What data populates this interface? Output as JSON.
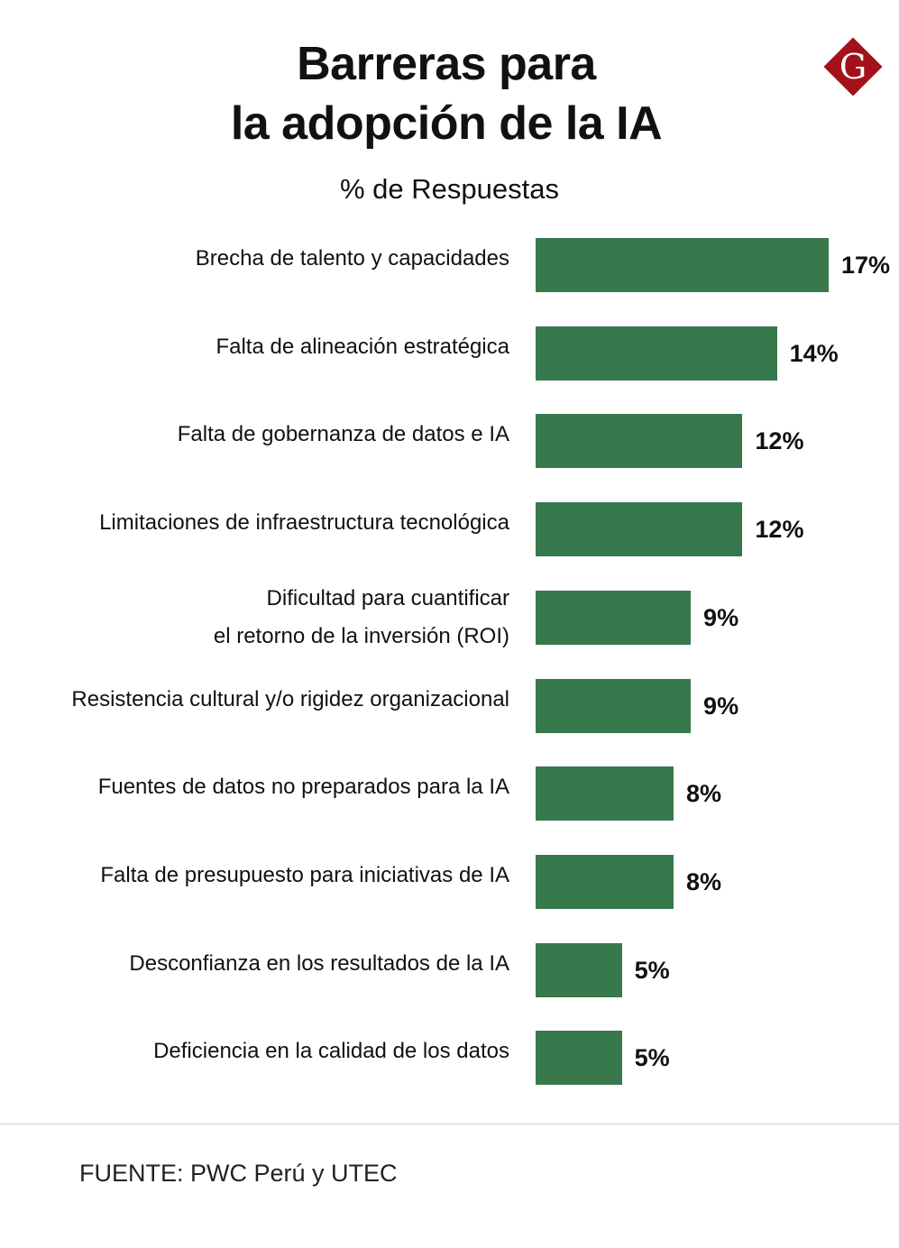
{
  "brand": {
    "logo_letter": "G",
    "logo_color": "#a3111b"
  },
  "chart_data": {
    "type": "bar",
    "orientation": "horizontal",
    "title": [
      "Barreras para",
      "la adopción de la IA"
    ],
    "subtitle": "% de Respuestas",
    "categories": [
      [
        "Brecha de talento y capacidades"
      ],
      [
        "Falta de alineación estratégica"
      ],
      [
        "Falta de gobernanza de datos e IA"
      ],
      [
        "Limitaciones de infraestructura tecnológica"
      ],
      [
        "Dificultad para cuantificar",
        "el retorno de la inversión (ROI)"
      ],
      [
        "Resistencia cultural y/o rigidez organizacional"
      ],
      [
        "Fuentes de datos no preparados para la IA"
      ],
      [
        "Falta de presupuesto para iniciativas de IA"
      ],
      [
        "Desconfianza en los resultados de la IA"
      ],
      [
        "Deficiencia en la calidad de los datos"
      ]
    ],
    "values": [
      17,
      14,
      12,
      12,
      9,
      9,
      8,
      8,
      5,
      5
    ],
    "value_labels": [
      "17%",
      "14%",
      "12%",
      "12%",
      "9%",
      "9%",
      "8%",
      "8%",
      "5%",
      "5%"
    ],
    "bar_color": "#38784d",
    "grid": false,
    "legend": "none"
  },
  "source": "FUENTE: PWC Perú y UTEC"
}
